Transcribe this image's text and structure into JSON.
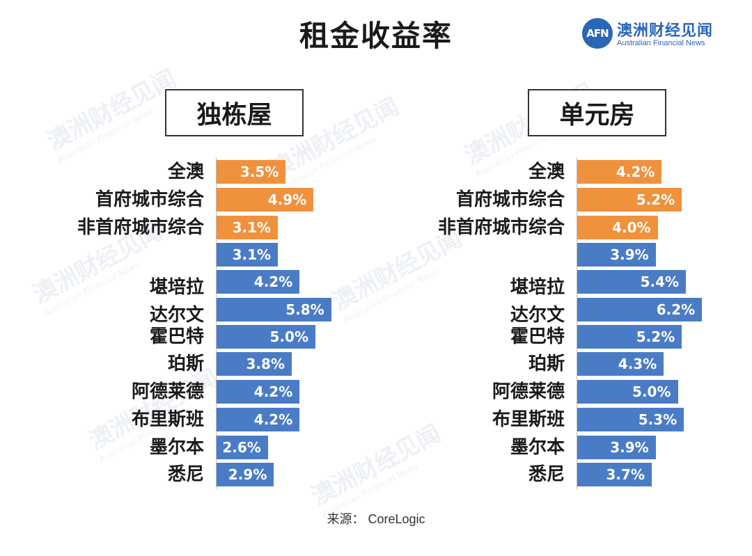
{
  "title": "租金收益率",
  "logo": {
    "badge": "AFN",
    "name_cn": "澳洲财经见闻",
    "name_en": "Australian Financial News"
  },
  "watermark": {
    "cn": "澳洲财经见闻",
    "en": "Australian Financial News"
  },
  "source": "来源：  CoreLogic",
  "colors": {
    "highlight": "#f0913c",
    "city": "#4a7cc6"
  },
  "chart_data": [
    {
      "type": "bar",
      "orientation": "horizontal",
      "title": "独栋屋",
      "categories": [
        "全澳",
        "首府城市综合",
        "非首府城市综合",
        "",
        "堪培拉",
        "达尔文",
        "霍巴特",
        "珀斯",
        "阿德莱德",
        "布里斯班",
        "墨尔本",
        "悉尼"
      ],
      "values": [
        3.5,
        4.9,
        3.1,
        3.1,
        4.2,
        5.8,
        5.0,
        3.8,
        4.2,
        4.2,
        2.6,
        2.9
      ],
      "labels": [
        "3.5%",
        "4.9%",
        "3.1%",
        "3.1%",
        "4.2%",
        "5.8%",
        "5.0%",
        "3.8%",
        "4.2%",
        "4.2%",
        "2.6%",
        "2.9%"
      ],
      "groups": [
        "national",
        "national",
        "national",
        "city",
        "city",
        "city",
        "city",
        "city",
        "city",
        "city",
        "city",
        "city"
      ],
      "unit": "%"
    },
    {
      "type": "bar",
      "orientation": "horizontal",
      "title": "单元房",
      "categories": [
        "全澳",
        "首府城市综合",
        "非首府城市综合",
        "",
        "堪培拉",
        "达尔文",
        "霍巴特",
        "珀斯",
        "阿德莱德",
        "布里斯班",
        "墨尔本",
        "悉尼"
      ],
      "values": [
        4.2,
        5.2,
        4.0,
        3.9,
        5.4,
        6.2,
        5.2,
        4.3,
        5.0,
        5.3,
        3.9,
        3.7
      ],
      "labels": [
        "4.2%",
        "5.2%",
        "4.0%",
        "3.9%",
        "5.4%",
        "6.2%",
        "5.2%",
        "4.3%",
        "5.0%",
        "5.3%",
        "3.9%",
        "3.7%"
      ],
      "groups": [
        "national",
        "national",
        "national",
        "city",
        "city",
        "city",
        "city",
        "city",
        "city",
        "city",
        "city",
        "city"
      ],
      "unit": "%"
    }
  ]
}
